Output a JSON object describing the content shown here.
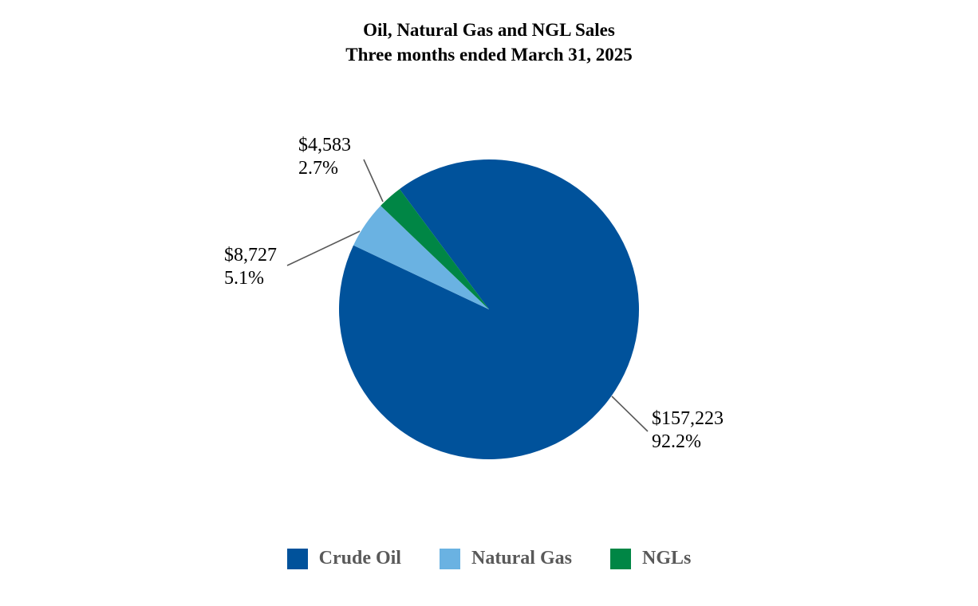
{
  "chart_data": {
    "type": "pie",
    "title": "Oil, Natural Gas and NGL Sales",
    "subtitle": "Three months ended March 31, 2025",
    "start_angle_deg": 0,
    "direction": "clockwise",
    "legend_position": "bottom",
    "slices": [
      {
        "name": "Crude Oil",
        "value": 157223,
        "value_label": "$157,223",
        "percent_label": "92.2%",
        "color": "#00529B"
      },
      {
        "name": "Natural Gas",
        "value": 8727,
        "value_label": "$8,727",
        "percent_label": "5.1%",
        "color": "#6AB2E2"
      },
      {
        "name": "NGLs",
        "value": 4583,
        "value_label": "$4,583",
        "percent_label": "2.7%",
        "color": "#008645"
      }
    ]
  }
}
